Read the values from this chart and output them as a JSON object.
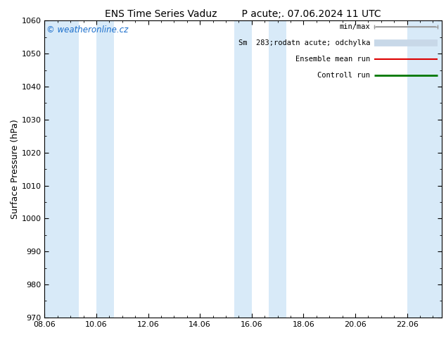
{
  "title": "ENS Time Series Vaduz        P acute;. 07.06.2024 11 UTC",
  "ylabel": "Surface Pressure (hPa)",
  "ylim": [
    970,
    1060
  ],
  "yticks": [
    970,
    980,
    990,
    1000,
    1010,
    1020,
    1030,
    1040,
    1050,
    1060
  ],
  "x_labels": [
    "08.06",
    "10.06",
    "12.06",
    "14.06",
    "16.06",
    "18.06",
    "20.06",
    "22.06"
  ],
  "x_values": [
    0.0,
    2.0,
    4.0,
    6.0,
    8.0,
    10.0,
    12.0,
    14.0
  ],
  "x_lim": [
    0.0,
    15.333
  ],
  "watermark": "© weatheronline.cz",
  "watermark_color": "#1a6ecc",
  "background_color": "#ffffff",
  "shaded_bands": [
    {
      "x_start": 0.0,
      "x_end": 1.333
    },
    {
      "x_start": 2.0,
      "x_end": 2.667
    },
    {
      "x_start": 7.333,
      "x_end": 8.0
    },
    {
      "x_start": 8.667,
      "x_end": 9.333
    },
    {
      "x_start": 14.0,
      "x_end": 15.333
    }
  ],
  "shade_color": "#d8eaf8",
  "legend_labels": [
    "min/max",
    "Sm  283;rodatn acute; odchylka",
    "Ensemble mean run",
    "Controll run"
  ],
  "legend_colors": [
    "#999999",
    "#c8d8e8",
    "#dd0000",
    "#007700"
  ],
  "title_fontsize": 10,
  "tick_fontsize": 8,
  "ylabel_fontsize": 9
}
